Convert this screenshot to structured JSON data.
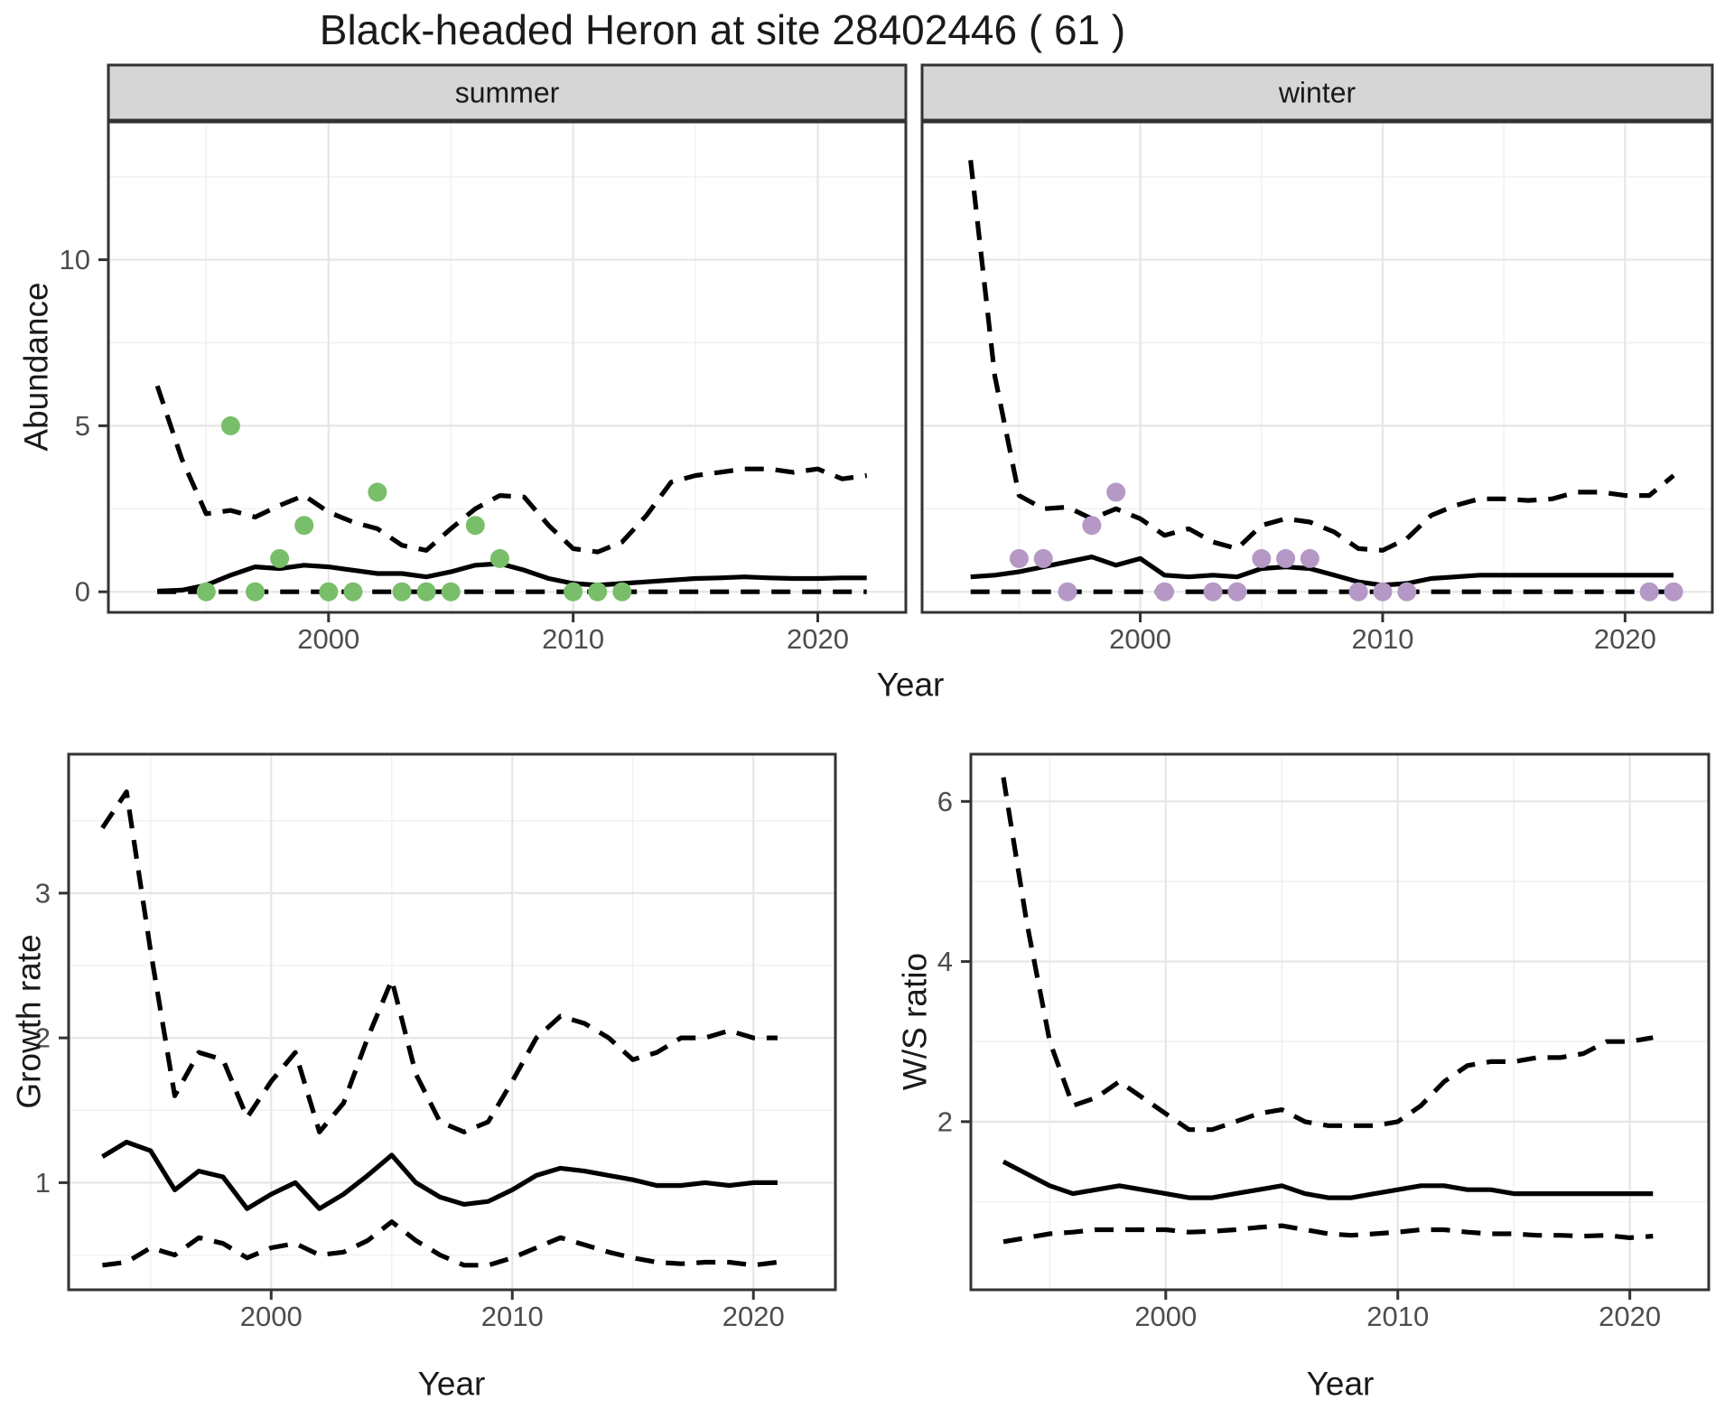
{
  "title": "Black-headed Heron at site 28402446 ( 61 )",
  "facets": {
    "summer": "summer",
    "winter": "winter"
  },
  "axes": {
    "x_label": "Year",
    "abundance_label": "Abundance",
    "growth_label": "Growth rate",
    "ws_label": "W/S ratio"
  },
  "colors": {
    "summer_point": "#79be69",
    "winter_point": "#b598c5",
    "line": "#000000",
    "strip_bg": "#d6d6d6",
    "panel_border": "#333333",
    "grid_major": "#e6e6e6",
    "grid_minor": "#f2f2f2",
    "tick_text": "#4d4d4d",
    "label_text": "#1a1a1a"
  },
  "chart_data": [
    {
      "id": "abundance-summer",
      "type": "line",
      "title": "summer",
      "xlabel": "Year",
      "ylabel": "Abundance",
      "x_domain": [
        1991.0,
        2023.6
      ],
      "y_domain": [
        -0.62,
        14.15
      ],
      "x_ticks": [
        2000,
        2010,
        2020
      ],
      "x_minor": [
        1995,
        2005,
        2015
      ],
      "y_ticks": [
        0,
        5,
        10
      ],
      "y_minor": [
        2.5,
        7.5,
        12.5
      ],
      "grid": true,
      "legend": "none",
      "years": [
        1993,
        1994,
        1995,
        1996,
        1997,
        1998,
        1999,
        2000,
        2001,
        2002,
        2003,
        2004,
        2005,
        2006,
        2007,
        2008,
        2009,
        2010,
        2011,
        2012,
        2013,
        2014,
        2015,
        2016,
        2017,
        2018,
        2019,
        2020,
        2021,
        2022
      ],
      "series": [
        {
          "name": "median",
          "style": "solid",
          "values": [
            0.02,
            0.05,
            0.2,
            0.5,
            0.75,
            0.7,
            0.8,
            0.75,
            0.65,
            0.55,
            0.55,
            0.45,
            0.6,
            0.8,
            0.85,
            0.65,
            0.4,
            0.25,
            0.2,
            0.25,
            0.3,
            0.35,
            0.4,
            0.42,
            0.45,
            0.42,
            0.4,
            0.4,
            0.42,
            0.42
          ]
        },
        {
          "name": "upper_ci",
          "style": "dashed",
          "values": [
            6.2,
            4.0,
            2.35,
            2.45,
            2.25,
            2.6,
            2.9,
            2.4,
            2.1,
            1.9,
            1.4,
            1.25,
            1.9,
            2.5,
            2.9,
            2.85,
            2.0,
            1.3,
            1.2,
            1.5,
            2.3,
            3.3,
            3.5,
            3.6,
            3.7,
            3.7,
            3.6,
            3.7,
            3.4,
            3.5
          ]
        },
        {
          "name": "lower_ci",
          "style": "dashed",
          "values": [
            0,
            0,
            0,
            0,
            0,
            0,
            0,
            0,
            0,
            0,
            0,
            0,
            0,
            0,
            0,
            0,
            0,
            0,
            0,
            0,
            0,
            0,
            0,
            0,
            0,
            0,
            0,
            0,
            0,
            0
          ]
        }
      ],
      "points": {
        "name": "observed_counts",
        "color_key": "summer_point",
        "data": [
          [
            1995,
            0
          ],
          [
            1996,
            5
          ],
          [
            1997,
            0
          ],
          [
            1998,
            1
          ],
          [
            1999,
            2
          ],
          [
            2000,
            0
          ],
          [
            2001,
            0
          ],
          [
            2002,
            3
          ],
          [
            2003,
            0
          ],
          [
            2004,
            0
          ],
          [
            2005,
            0
          ],
          [
            2006,
            2
          ],
          [
            2007,
            1
          ],
          [
            2010,
            0
          ],
          [
            2011,
            0
          ],
          [
            2012,
            0
          ]
        ]
      }
    },
    {
      "id": "abundance-winter",
      "type": "line",
      "title": "winter",
      "xlabel": "Year",
      "ylabel": "Abundance",
      "x_domain": [
        1991.0,
        2023.6
      ],
      "y_domain": [
        -0.62,
        14.15
      ],
      "x_ticks": [
        2000,
        2010,
        2020
      ],
      "x_minor": [
        1995,
        2005,
        2015
      ],
      "y_ticks": [
        0,
        5,
        10
      ],
      "y_minor": [
        2.5,
        7.5,
        12.5
      ],
      "grid": true,
      "legend": "none",
      "years": [
        1993,
        1994,
        1995,
        1996,
        1997,
        1998,
        1999,
        2000,
        2001,
        2002,
        2003,
        2004,
        2005,
        2006,
        2007,
        2008,
        2009,
        2010,
        2011,
        2012,
        2013,
        2014,
        2015,
        2016,
        2017,
        2018,
        2019,
        2020,
        2021,
        2022
      ],
      "series": [
        {
          "name": "median",
          "style": "solid",
          "values": [
            0.45,
            0.5,
            0.6,
            0.75,
            0.9,
            1.05,
            0.8,
            1.0,
            0.5,
            0.45,
            0.5,
            0.45,
            0.7,
            0.75,
            0.7,
            0.5,
            0.3,
            0.2,
            0.25,
            0.4,
            0.45,
            0.5,
            0.5,
            0.5,
            0.5,
            0.5,
            0.5,
            0.5,
            0.5,
            0.5
          ]
        },
        {
          "name": "upper_ci",
          "style": "dashed",
          "values": [
            13.0,
            6.5,
            2.9,
            2.5,
            2.55,
            2.2,
            2.5,
            2.2,
            1.7,
            1.9,
            1.5,
            1.3,
            2.0,
            2.2,
            2.1,
            1.8,
            1.3,
            1.25,
            1.6,
            2.3,
            2.6,
            2.8,
            2.8,
            2.75,
            2.8,
            3.0,
            3.0,
            2.9,
            2.9,
            3.5
          ]
        },
        {
          "name": "lower_ci",
          "style": "dashed",
          "values": [
            0,
            0,
            0,
            0,
            0,
            0,
            0,
            0,
            0,
            0,
            0,
            0,
            0,
            0,
            0,
            0,
            0,
            0,
            0,
            0,
            0,
            0,
            0,
            0,
            0,
            0,
            0,
            0,
            0,
            0
          ]
        }
      ],
      "points": {
        "name": "observed_counts",
        "color_key": "winter_point",
        "data": [
          [
            1995,
            1
          ],
          [
            1996,
            1
          ],
          [
            1997,
            0
          ],
          [
            1998,
            2
          ],
          [
            1999,
            3
          ],
          [
            2001,
            0
          ],
          [
            2003,
            0
          ],
          [
            2004,
            0
          ],
          [
            2005,
            1
          ],
          [
            2006,
            1
          ],
          [
            2007,
            1
          ],
          [
            2009,
            0
          ],
          [
            2010,
            0
          ],
          [
            2011,
            0
          ],
          [
            2021,
            0
          ],
          [
            2022,
            0
          ]
        ]
      }
    },
    {
      "id": "growth-rate",
      "type": "line",
      "title": "",
      "xlabel": "Year",
      "ylabel": "Growth rate",
      "x_domain": [
        1991.6,
        2023.4
      ],
      "y_domain": [
        0.26,
        3.96
      ],
      "x_ticks": [
        2000,
        2010,
        2020
      ],
      "x_minor": [
        1995,
        2005,
        2015
      ],
      "y_ticks": [
        1,
        2,
        3
      ],
      "y_minor": [
        0.5,
        1.5,
        2.5,
        3.5
      ],
      "grid": true,
      "legend": "none",
      "years": [
        1993,
        1994,
        1995,
        1996,
        1997,
        1998,
        1999,
        2000,
        2001,
        2002,
        2003,
        2004,
        2005,
        2006,
        2007,
        2008,
        2009,
        2010,
        2011,
        2012,
        2013,
        2014,
        2015,
        2016,
        2017,
        2018,
        2019,
        2020,
        2021
      ],
      "series": [
        {
          "name": "median",
          "style": "solid",
          "values": [
            1.18,
            1.28,
            1.22,
            0.95,
            1.08,
            1.04,
            0.82,
            0.92,
            1.0,
            0.82,
            0.92,
            1.05,
            1.19,
            1.0,
            0.9,
            0.85,
            0.87,
            0.95,
            1.05,
            1.1,
            1.08,
            1.05,
            1.02,
            0.98,
            0.98,
            1.0,
            0.98,
            1.0,
            1.0
          ]
        },
        {
          "name": "upper_ci",
          "style": "dashed",
          "values": [
            3.45,
            3.7,
            2.6,
            1.6,
            1.9,
            1.85,
            1.45,
            1.7,
            1.9,
            1.35,
            1.55,
            2.0,
            2.4,
            1.75,
            1.42,
            1.35,
            1.42,
            1.7,
            2.0,
            2.15,
            2.1,
            2.0,
            1.85,
            1.9,
            2.0,
            2.0,
            2.05,
            2.0,
            2.0
          ]
        },
        {
          "name": "lower_ci",
          "style": "dashed",
          "values": [
            0.43,
            0.45,
            0.55,
            0.5,
            0.62,
            0.58,
            0.48,
            0.55,
            0.58,
            0.5,
            0.52,
            0.6,
            0.73,
            0.6,
            0.5,
            0.43,
            0.43,
            0.48,
            0.55,
            0.62,
            0.57,
            0.52,
            0.48,
            0.45,
            0.44,
            0.45,
            0.45,
            0.43,
            0.45
          ]
        }
      ],
      "points": null
    },
    {
      "id": "ws-ratio",
      "type": "line",
      "title": "",
      "xlabel": "Year",
      "ylabel": "W/S ratio",
      "x_domain": [
        1991.6,
        2023.4
      ],
      "y_domain": [
        -0.1,
        6.59
      ],
      "x_ticks": [
        2000,
        2010,
        2020
      ],
      "x_minor": [
        1995,
        2005,
        2015
      ],
      "y_ticks": [
        2,
        4,
        6
      ],
      "y_minor": [
        1,
        3,
        5
      ],
      "grid": true,
      "legend": "none",
      "years": [
        1993,
        1994,
        1995,
        1996,
        1997,
        1998,
        1999,
        2000,
        2001,
        2002,
        2003,
        2004,
        2005,
        2006,
        2007,
        2008,
        2009,
        2010,
        2011,
        2012,
        2013,
        2014,
        2015,
        2016,
        2017,
        2018,
        2019,
        2020,
        2021
      ],
      "series": [
        {
          "name": "median",
          "style": "solid",
          "values": [
            1.5,
            1.35,
            1.2,
            1.1,
            1.15,
            1.2,
            1.15,
            1.1,
            1.05,
            1.05,
            1.1,
            1.15,
            1.2,
            1.1,
            1.05,
            1.05,
            1.1,
            1.15,
            1.2,
            1.2,
            1.15,
            1.15,
            1.1,
            1.1,
            1.1,
            1.1,
            1.1,
            1.1,
            1.1
          ]
        },
        {
          "name": "upper_ci",
          "style": "dashed",
          "values": [
            6.3,
            4.5,
            3.0,
            2.2,
            2.3,
            2.5,
            2.3,
            2.1,
            1.9,
            1.9,
            2.0,
            2.1,
            2.15,
            2.0,
            1.95,
            1.95,
            1.95,
            2.0,
            2.2,
            2.5,
            2.7,
            2.75,
            2.75,
            2.8,
            2.8,
            2.85,
            3.0,
            3.0,
            3.05
          ]
        },
        {
          "name": "lower_ci",
          "style": "dashed",
          "values": [
            0.5,
            0.55,
            0.6,
            0.62,
            0.65,
            0.65,
            0.65,
            0.65,
            0.62,
            0.63,
            0.65,
            0.68,
            0.7,
            0.65,
            0.6,
            0.58,
            0.6,
            0.62,
            0.65,
            0.65,
            0.62,
            0.6,
            0.6,
            0.58,
            0.58,
            0.57,
            0.58,
            0.55,
            0.57
          ]
        }
      ],
      "points": null
    }
  ]
}
